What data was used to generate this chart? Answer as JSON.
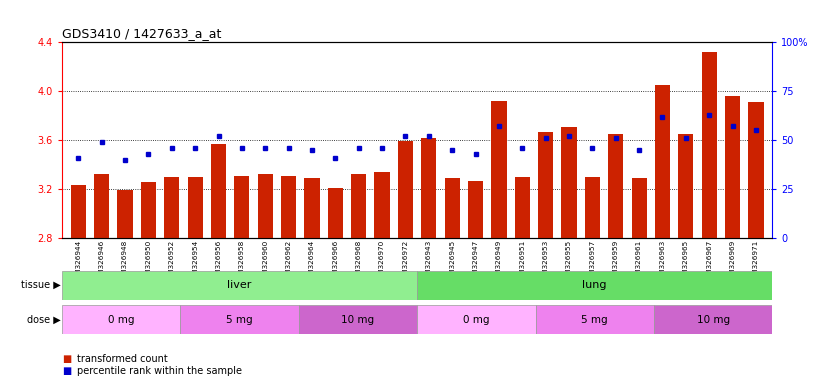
{
  "title": "GDS3410 / 1427633_a_at",
  "samples": [
    "GSM326944",
    "GSM326946",
    "GSM326948",
    "GSM326950",
    "GSM326952",
    "GSM326954",
    "GSM326956",
    "GSM326958",
    "GSM326960",
    "GSM326962",
    "GSM326964",
    "GSM326966",
    "GSM326968",
    "GSM326970",
    "GSM326972",
    "GSM326943",
    "GSM326945",
    "GSM326947",
    "GSM326949",
    "GSM326951",
    "GSM326953",
    "GSM326955",
    "GSM326957",
    "GSM326959",
    "GSM326961",
    "GSM326963",
    "GSM326965",
    "GSM326967",
    "GSM326969",
    "GSM326971"
  ],
  "transformed_count": [
    3.23,
    3.32,
    3.19,
    3.26,
    3.3,
    3.3,
    3.57,
    3.31,
    3.32,
    3.31,
    3.29,
    3.21,
    3.32,
    3.34,
    3.59,
    3.62,
    3.29,
    3.27,
    3.92,
    3.3,
    3.67,
    3.71,
    3.3,
    3.65,
    3.29,
    4.05,
    3.65,
    4.32,
    3.96,
    3.91
  ],
  "percentile_rank": [
    41,
    49,
    40,
    43,
    46,
    46,
    52,
    46,
    46,
    46,
    45,
    41,
    46,
    46,
    52,
    52,
    45,
    43,
    57,
    46,
    51,
    52,
    46,
    51,
    45,
    62,
    51,
    63,
    57,
    55
  ],
  "dose_labels": [
    "0 mg",
    "5 mg",
    "10 mg",
    "0 mg",
    "5 mg",
    "10 mg"
  ],
  "dose_boundaries": [
    0,
    5,
    10,
    15,
    20,
    25,
    30
  ],
  "liver_color": "#90EE90",
  "lung_color": "#66DD66",
  "dose_colors": [
    "#FFB3FF",
    "#EE82EE",
    "#CC66CC"
  ],
  "bar_color": "#CC2200",
  "marker_color": "#0000CC",
  "ylim": [
    2.8,
    4.4
  ],
  "yticks": [
    2.8,
    3.2,
    3.6,
    4.0,
    4.4
  ],
  "right_yticks": [
    0,
    25,
    50,
    75,
    100
  ],
  "right_ylabels": [
    "0",
    "25",
    "50",
    "75",
    "100%"
  ]
}
